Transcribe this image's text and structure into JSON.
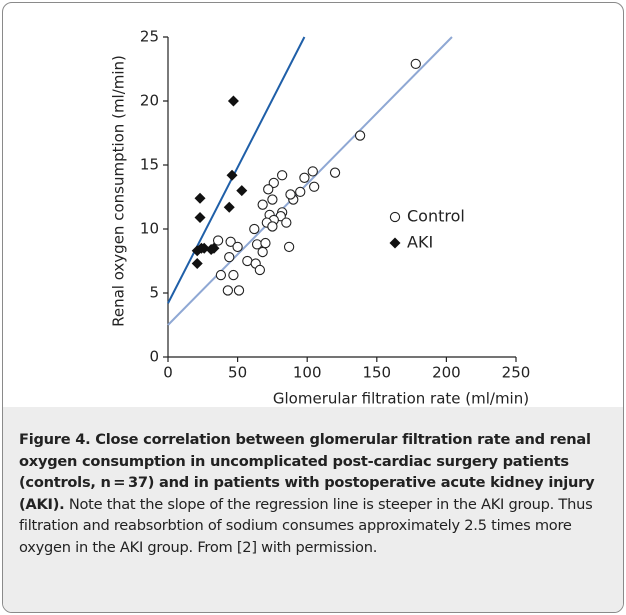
{
  "chart_data": {
    "type": "scatter",
    "xlabel": "Glomerular filtration rate (ml/min)",
    "ylabel": "Renal oxygen consumption (ml/min)",
    "xlim": [
      0,
      250
    ],
    "xticks": [
      0,
      50,
      100,
      150,
      200,
      250
    ],
    "ylim": [
      0,
      25
    ],
    "yticks": [
      0,
      5,
      10,
      15,
      20,
      25
    ],
    "series": [
      {
        "name": "Control",
        "marker": "circle",
        "color": "#222222",
        "x": [
          178,
          138,
          120,
          104,
          105,
          98,
          95,
          90,
          82,
          76,
          72,
          68,
          75,
          82,
          81,
          73,
          76,
          71,
          85,
          75,
          62,
          45,
          36,
          50,
          64,
          70,
          87,
          68,
          44,
          57,
          63,
          66,
          38,
          47,
          43,
          51,
          88
        ],
        "values": [
          22.9,
          17.3,
          14.4,
          14.5,
          13.3,
          14.0,
          12.9,
          12.3,
          14.2,
          13.6,
          13.1,
          11.9,
          12.3,
          11.3,
          11.0,
          11.1,
          10.7,
          10.5,
          10.5,
          10.2,
          10.0,
          9.0,
          9.1,
          8.6,
          8.8,
          8.9,
          8.6,
          8.2,
          7.8,
          7.5,
          7.3,
          6.8,
          6.4,
          6.4,
          5.2,
          5.2,
          12.7
        ]
      },
      {
        "name": "AKI",
        "marker": "diamond",
        "color": "#111111",
        "x": [
          47,
          46,
          53,
          44,
          23,
          23,
          21,
          26,
          31,
          33,
          21,
          24
        ],
        "values": [
          20.0,
          14.2,
          13.0,
          11.7,
          12.4,
          10.9,
          8.3,
          8.5,
          8.4,
          8.5,
          7.3,
          8.5
        ]
      }
    ],
    "regression_lines": [
      {
        "color": "#1f5fa8",
        "x": [
          0,
          98
        ],
        "values": [
          4.2,
          25
        ]
      },
      {
        "color": "#8fa8d4",
        "x": [
          0,
          204
        ],
        "values": [
          2.5,
          25
        ]
      }
    ]
  },
  "caption": {
    "bold": "Figure 4. Close correlation between glomerular filtration rate and renal oxygen consumption in uncomplicated post-cardiac surgery patients (controls, n = 37) and in patients with postoperative acute kidney injury (AKI).",
    "text": "Note that the slope of the regression line is steeper in the AKI group. Thus filtration and reabsorbtion of sodium consumes approximately 2.5 times more oxygen in the AKI group. From [2] with permission."
  }
}
